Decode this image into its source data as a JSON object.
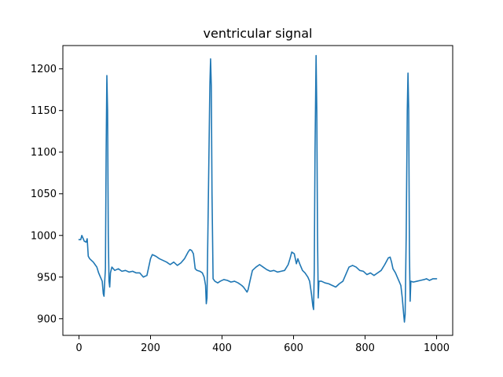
{
  "chart_data": {
    "type": "line",
    "title": "ventricular signal",
    "xlabel": "",
    "ylabel": "",
    "xlim": [
      -45,
      1045
    ],
    "ylim": [
      880,
      1228
    ],
    "xticks": [
      0,
      200,
      400,
      600,
      800,
      1000
    ],
    "yticks": [
      900,
      950,
      1000,
      1050,
      1100,
      1150,
      1200
    ],
    "grid": false,
    "series": [
      {
        "color": "#1f77b4",
        "points": [
          [
            0,
            995
          ],
          [
            5,
            995
          ],
          [
            8,
            1000
          ],
          [
            12,
            996
          ],
          [
            15,
            993
          ],
          [
            20,
            992
          ],
          [
            23,
            996
          ],
          [
            26,
            975
          ],
          [
            30,
            972
          ],
          [
            35,
            970
          ],
          [
            40,
            968
          ],
          [
            45,
            965
          ],
          [
            50,
            962
          ],
          [
            55,
            955
          ],
          [
            60,
            950
          ],
          [
            65,
            945
          ],
          [
            68,
            930
          ],
          [
            70,
            927
          ],
          [
            72,
            945
          ],
          [
            74,
            960
          ],
          [
            76,
            1100
          ],
          [
            78,
            1192
          ],
          [
            80,
            1150
          ],
          [
            82,
            1000
          ],
          [
            84,
            945
          ],
          [
            86,
            938
          ],
          [
            88,
            955
          ],
          [
            92,
            962
          ],
          [
            100,
            958
          ],
          [
            110,
            960
          ],
          [
            120,
            957
          ],
          [
            130,
            958
          ],
          [
            140,
            956
          ],
          [
            150,
            957
          ],
          [
            160,
            955
          ],
          [
            170,
            955
          ],
          [
            180,
            950
          ],
          [
            190,
            952
          ],
          [
            195,
            962
          ],
          [
            200,
            972
          ],
          [
            205,
            977
          ],
          [
            215,
            975
          ],
          [
            225,
            972
          ],
          [
            235,
            970
          ],
          [
            245,
            968
          ],
          [
            255,
            965
          ],
          [
            265,
            968
          ],
          [
            275,
            964
          ],
          [
            285,
            967
          ],
          [
            295,
            972
          ],
          [
            305,
            980
          ],
          [
            310,
            983
          ],
          [
            315,
            982
          ],
          [
            320,
            978
          ],
          [
            325,
            960
          ],
          [
            330,
            958
          ],
          [
            338,
            957
          ],
          [
            345,
            955
          ],
          [
            350,
            950
          ],
          [
            354,
            940
          ],
          [
            356,
            918
          ],
          [
            358,
            925
          ],
          [
            362,
            1050
          ],
          [
            366,
            1180
          ],
          [
            368,
            1212
          ],
          [
            370,
            1180
          ],
          [
            372,
            1050
          ],
          [
            375,
            948
          ],
          [
            380,
            945
          ],
          [
            388,
            943
          ],
          [
            395,
            945
          ],
          [
            405,
            947
          ],
          [
            415,
            946
          ],
          [
            425,
            944
          ],
          [
            435,
            945
          ],
          [
            445,
            943
          ],
          [
            455,
            940
          ],
          [
            460,
            938
          ],
          [
            465,
            935
          ],
          [
            470,
            932
          ],
          [
            473,
            935
          ],
          [
            478,
            945
          ],
          [
            485,
            958
          ],
          [
            495,
            962
          ],
          [
            505,
            965
          ],
          [
            515,
            962
          ],
          [
            525,
            959
          ],
          [
            535,
            957
          ],
          [
            545,
            958
          ],
          [
            555,
            956
          ],
          [
            565,
            957
          ],
          [
            575,
            958
          ],
          [
            585,
            965
          ],
          [
            590,
            972
          ],
          [
            595,
            980
          ],
          [
            602,
            978
          ],
          [
            608,
            966
          ],
          [
            612,
            972
          ],
          [
            618,
            965
          ],
          [
            625,
            958
          ],
          [
            632,
            955
          ],
          [
            640,
            950
          ],
          [
            645,
            945
          ],
          [
            650,
            930
          ],
          [
            654,
            915
          ],
          [
            656,
            911
          ],
          [
            658,
            960
          ],
          [
            660,
            1100
          ],
          [
            663,
            1216
          ],
          [
            665,
            1150
          ],
          [
            667,
            1000
          ],
          [
            669,
            925
          ],
          [
            671,
            945
          ],
          [
            678,
            945
          ],
          [
            688,
            943
          ],
          [
            698,
            942
          ],
          [
            708,
            940
          ],
          [
            718,
            938
          ],
          [
            728,
            942
          ],
          [
            738,
            945
          ],
          [
            748,
            955
          ],
          [
            755,
            962
          ],
          [
            765,
            964
          ],
          [
            775,
            962
          ],
          [
            785,
            958
          ],
          [
            795,
            957
          ],
          [
            805,
            953
          ],
          [
            815,
            955
          ],
          [
            825,
            952
          ],
          [
            835,
            955
          ],
          [
            845,
            958
          ],
          [
            855,
            965
          ],
          [
            865,
            973
          ],
          [
            870,
            974
          ],
          [
            874,
            968
          ],
          [
            878,
            960
          ],
          [
            885,
            955
          ],
          [
            890,
            950
          ],
          [
            895,
            945
          ],
          [
            900,
            940
          ],
          [
            904,
            925
          ],
          [
            908,
            905
          ],
          [
            910,
            896
          ],
          [
            912,
            905
          ],
          [
            915,
            1000
          ],
          [
            918,
            1150
          ],
          [
            920,
            1195
          ],
          [
            922,
            1150
          ],
          [
            924,
            980
          ],
          [
            926,
            921
          ],
          [
            928,
            945
          ],
          [
            935,
            944
          ],
          [
            945,
            945
          ],
          [
            955,
            946
          ],
          [
            965,
            947
          ],
          [
            972,
            948
          ],
          [
            980,
            946
          ],
          [
            990,
            948
          ],
          [
            1000,
            948
          ]
        ]
      }
    ]
  }
}
